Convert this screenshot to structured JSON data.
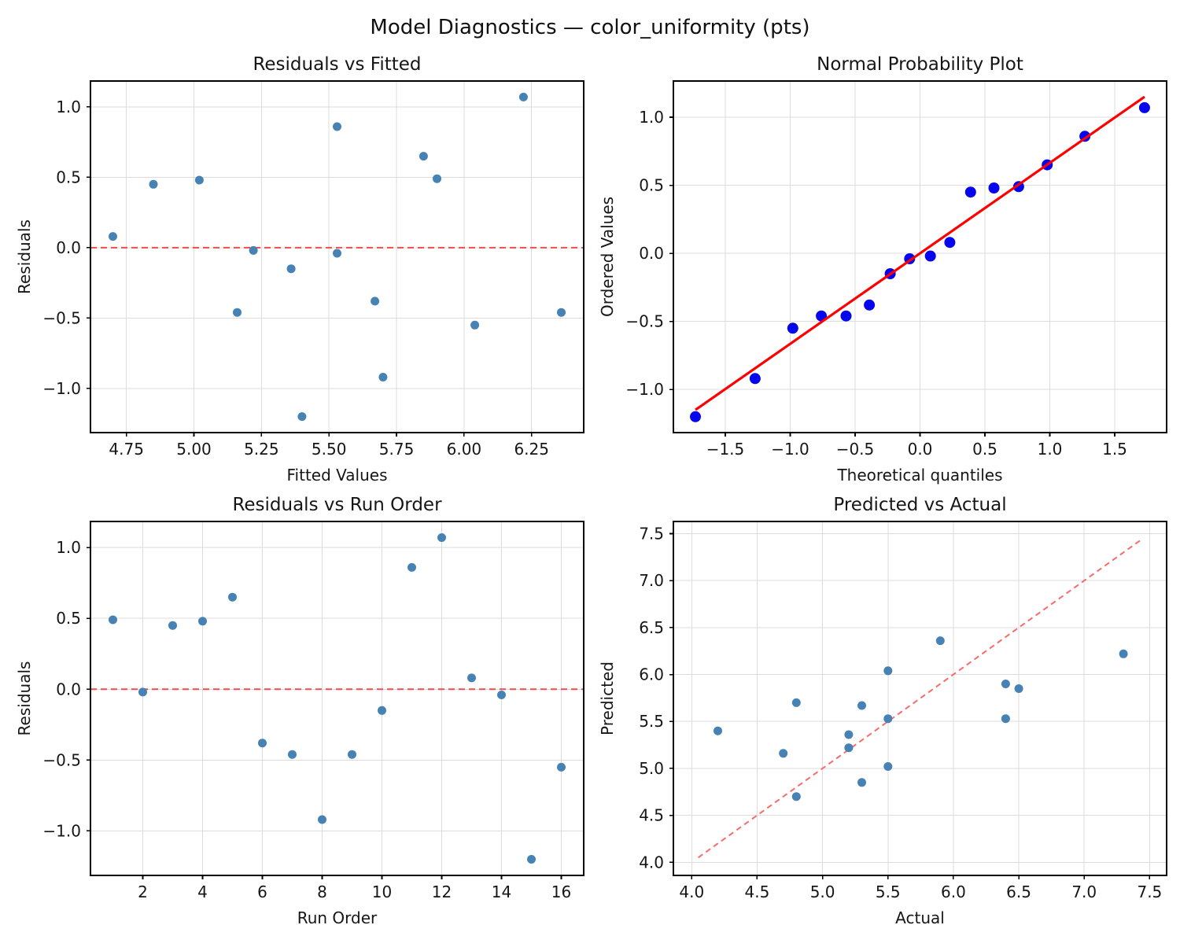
{
  "figure": {
    "suptitle": "Model Diagnostics — color_uniformity (pts)",
    "colors": {
      "scatter_point": "#4682B4",
      "qq_point": "#0505ee",
      "qq_fit_line": "#ff0000",
      "zero_ref_line": "#f24b4b",
      "identity_ref_line": "#f76b6b",
      "grid": "#dcdcdc",
      "spine": "#000000",
      "text": "#161616"
    }
  },
  "chart_data": [
    {
      "id": "residuals-vs-fitted",
      "type": "scatter",
      "title": "Residuals vs Fitted",
      "xlabel": "Fitted Values",
      "ylabel": "Residuals",
      "xlim": [
        4.617,
        6.443
      ],
      "ylim": [
        -1.314,
        1.184
      ],
      "xticks": [
        4.75,
        5.0,
        5.25,
        5.5,
        5.75,
        6.0,
        6.25
      ],
      "yticks": [
        1.0,
        0.5,
        0.0,
        -0.5,
        -1.0
      ],
      "x_tick_decimals": 2,
      "y_tick_decimals": 1,
      "grid": true,
      "legend": "none",
      "point_color": "#4682B4",
      "point_radius": 5.5,
      "ref_lines": [
        {
          "name": "zero-line",
          "points": [
            [
              4.617,
              0.0
            ],
            [
              6.443,
              0.0
            ]
          ],
          "color": "#f24b4b",
          "dash": "8 5",
          "width": 2
        }
      ],
      "overlay_lines": [],
      "points": [
        [
          4.7,
          0.08
        ],
        [
          4.85,
          0.45
        ],
        [
          5.02,
          0.48
        ],
        [
          5.16,
          -0.46
        ],
        [
          5.22,
          -0.02
        ],
        [
          5.36,
          -0.15
        ],
        [
          5.4,
          -1.2
        ],
        [
          5.53,
          0.86
        ],
        [
          5.53,
          -0.04
        ],
        [
          5.67,
          -0.38
        ],
        [
          5.7,
          -0.92
        ],
        [
          5.85,
          0.65
        ],
        [
          5.9,
          0.49
        ],
        [
          6.04,
          -0.55
        ],
        [
          6.22,
          1.07
        ],
        [
          6.36,
          -0.46
        ]
      ]
    },
    {
      "id": "normal-probability",
      "type": "scatter",
      "title": "Normal Probability Plot",
      "xlabel": "Theoretical quantiles",
      "ylabel": "Ordered Values",
      "xlim": [
        -1.9,
        1.9
      ],
      "ylim": [
        -1.317,
        1.266
      ],
      "xticks": [
        -1.5,
        -1.0,
        -0.5,
        0.0,
        0.5,
        1.0,
        1.5
      ],
      "yticks": [
        1.0,
        0.5,
        0.0,
        -0.5,
        -1.0
      ],
      "x_tick_decimals": 1,
      "y_tick_decimals": 1,
      "grid": true,
      "legend": "none",
      "point_color": "#0505ee",
      "point_radius": 7,
      "ref_lines": [],
      "overlay_lines": [
        {
          "name": "fit-line",
          "points": [
            [
              -1.73,
              -1.15
            ],
            [
              1.73,
              1.15
            ]
          ],
          "color": "#ff0000",
          "dash": "",
          "width": 3.2
        }
      ],
      "points": [
        [
          -1.73,
          -1.2
        ],
        [
          -1.27,
          -0.92
        ],
        [
          -0.98,
          -0.55
        ],
        [
          -0.76,
          -0.46
        ],
        [
          -0.57,
          -0.46
        ],
        [
          -0.39,
          -0.38
        ],
        [
          -0.23,
          -0.15
        ],
        [
          -0.08,
          -0.04
        ],
        [
          0.08,
          -0.02
        ],
        [
          0.23,
          0.08
        ],
        [
          0.39,
          0.45
        ],
        [
          0.57,
          0.48
        ],
        [
          0.76,
          0.49
        ],
        [
          0.98,
          0.65
        ],
        [
          1.27,
          0.86
        ],
        [
          1.73,
          1.07
        ]
      ]
    },
    {
      "id": "residuals-vs-run-order",
      "type": "scatter",
      "title": "Residuals vs Run Order",
      "xlabel": "Run Order",
      "ylabel": "Residuals",
      "xlim": [
        0.25,
        16.75
      ],
      "ylim": [
        -1.314,
        1.184
      ],
      "xticks": [
        2,
        4,
        6,
        8,
        10,
        12,
        14,
        16
      ],
      "yticks": [
        1.0,
        0.5,
        0.0,
        -0.5,
        -1.0
      ],
      "x_tick_decimals": 0,
      "y_tick_decimals": 1,
      "grid": true,
      "legend": "none",
      "point_color": "#4682B4",
      "point_radius": 5.5,
      "ref_lines": [
        {
          "name": "zero-line",
          "points": [
            [
              0.25,
              0.0
            ],
            [
              16.75,
              0.0
            ]
          ],
          "color": "#f24b4b",
          "dash": "8 5",
          "width": 2
        }
      ],
      "overlay_lines": [],
      "points": [
        [
          1,
          0.49
        ],
        [
          2,
          -0.02
        ],
        [
          3,
          0.45
        ],
        [
          4,
          0.48
        ],
        [
          5,
          0.65
        ],
        [
          6,
          -0.38
        ],
        [
          7,
          -0.46
        ],
        [
          8,
          -0.92
        ],
        [
          9,
          -0.46
        ],
        [
          10,
          -0.15
        ],
        [
          11,
          0.86
        ],
        [
          12,
          1.07
        ],
        [
          13,
          0.08
        ],
        [
          14,
          -0.04
        ],
        [
          15,
          -1.2
        ],
        [
          16,
          -0.55
        ]
      ]
    },
    {
      "id": "predicted-vs-actual",
      "type": "scatter",
      "title": "Predicted vs Actual",
      "xlabel": "Actual",
      "ylabel": "Predicted",
      "xlim": [
        3.86,
        7.63
      ],
      "ylim": [
        3.86,
        7.63
      ],
      "xticks": [
        4.0,
        4.5,
        5.0,
        5.5,
        6.0,
        6.5,
        7.0,
        7.5
      ],
      "yticks": [
        4.0,
        4.5,
        5.0,
        5.5,
        6.0,
        6.5,
        7.0,
        7.5
      ],
      "x_tick_decimals": 1,
      "y_tick_decimals": 1,
      "grid": true,
      "legend": "none",
      "point_color": "#4682B4",
      "point_radius": 5.5,
      "ref_lines": [
        {
          "name": "identity-line",
          "points": [
            [
              4.05,
              4.05
            ],
            [
              7.45,
              7.45
            ]
          ],
          "color": "#f76b6b",
          "dash": "7 5",
          "width": 2
        }
      ],
      "overlay_lines": [],
      "points": [
        [
          6.4,
          5.9
        ],
        [
          5.2,
          5.22
        ],
        [
          5.3,
          4.85
        ],
        [
          5.5,
          5.02
        ],
        [
          6.5,
          5.85
        ],
        [
          5.3,
          5.67
        ],
        [
          4.7,
          5.16
        ],
        [
          4.8,
          5.7
        ],
        [
          5.9,
          6.36
        ],
        [
          5.2,
          5.36
        ],
        [
          6.4,
          5.53
        ],
        [
          7.3,
          6.22
        ],
        [
          4.8,
          4.7
        ],
        [
          5.5,
          5.53
        ],
        [
          4.2,
          5.4
        ],
        [
          5.5,
          6.04
        ]
      ]
    }
  ]
}
